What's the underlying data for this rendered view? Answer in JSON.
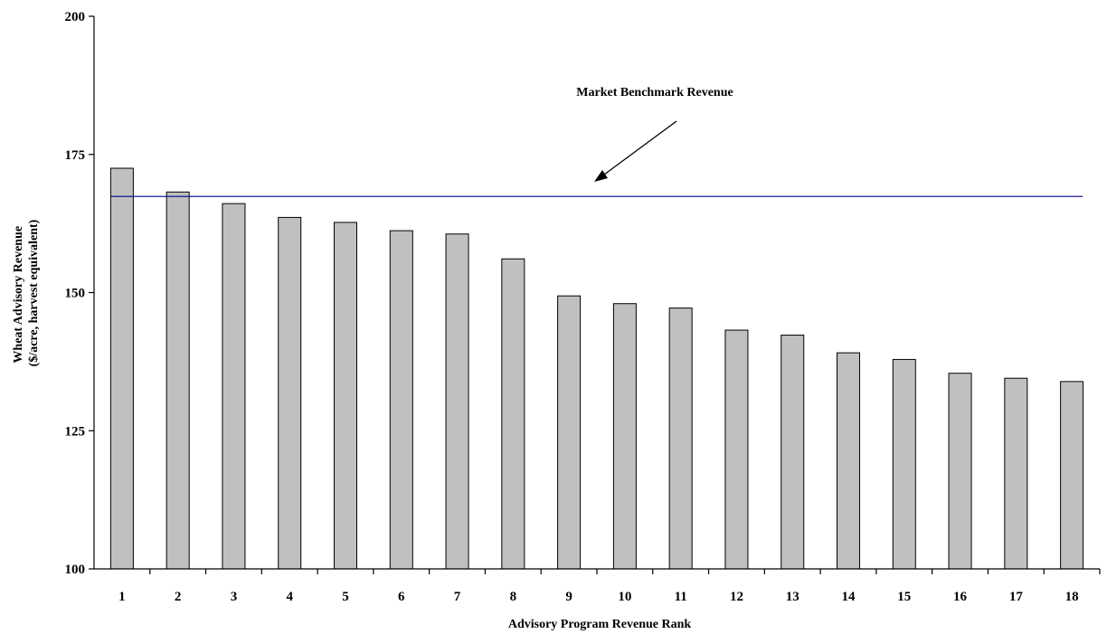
{
  "chart_data": {
    "type": "bar",
    "xlabel": "Advisory Program Revenue Rank",
    "ylabel_lines": [
      "Wheat Advisory Revenue",
      "($/acre, harvest equivalent)"
    ],
    "categories": [
      "1",
      "2",
      "3",
      "4",
      "5",
      "6",
      "7",
      "8",
      "9",
      "10",
      "11",
      "12",
      "13",
      "14",
      "15",
      "16",
      "17",
      "18"
    ],
    "values": [
      172.5,
      168.2,
      166.1,
      163.6,
      162.7,
      161.2,
      160.6,
      156.1,
      149.4,
      148.0,
      147.2,
      143.2,
      142.3,
      139.1,
      137.9,
      135.4,
      134.5,
      133.9
    ],
    "ylim": [
      100,
      200
    ],
    "yticks": [
      100,
      125,
      150,
      175,
      200
    ],
    "grid": false,
    "benchmark": {
      "label": "Market Benchmark Revenue",
      "value": 167.4
    },
    "colors": {
      "bar_fill": "#c0c0c0",
      "bar_stroke": "#000000",
      "benchmark_line": "#00008b"
    }
  }
}
